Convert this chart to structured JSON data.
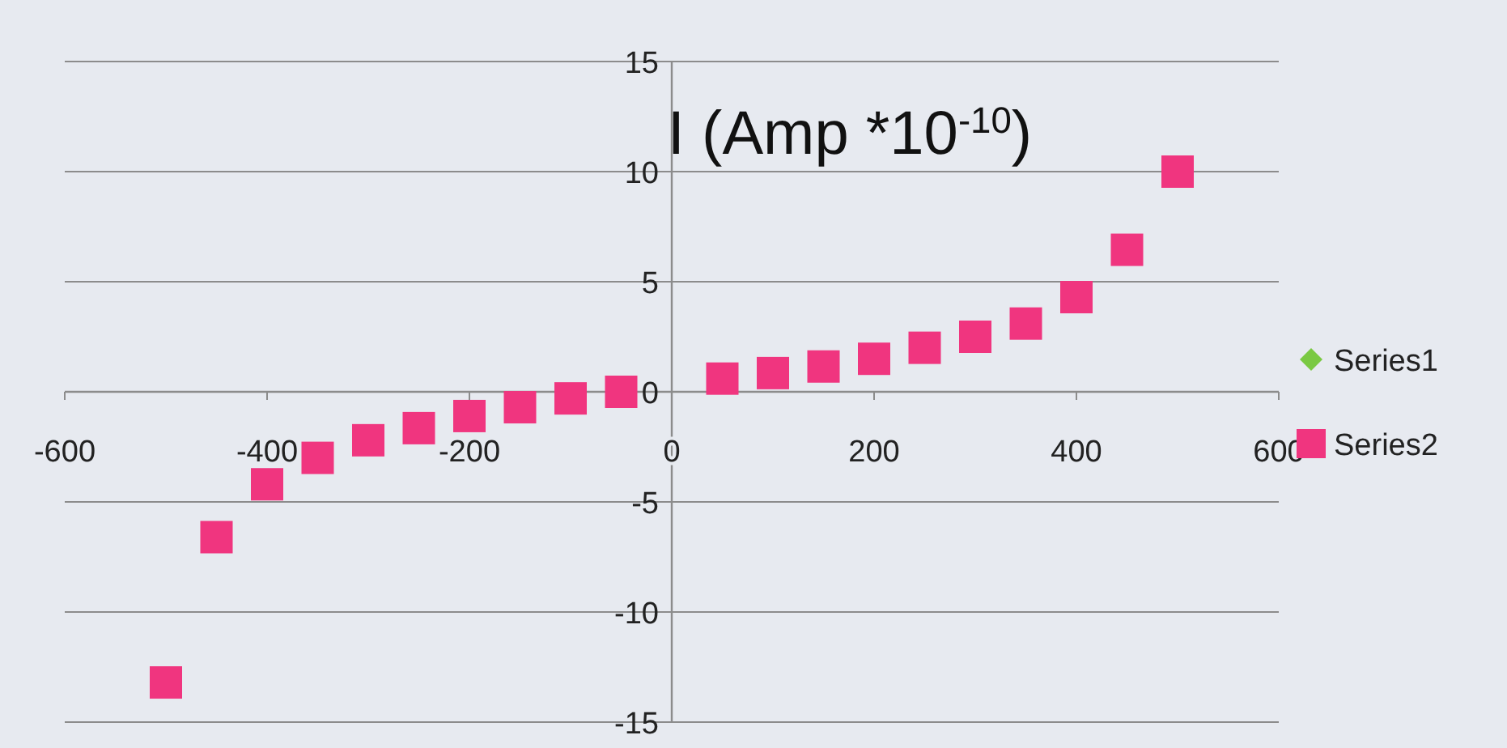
{
  "chart_data": {
    "type": "scatter",
    "title": "I (Amp *10$^{-10}$)",
    "xlim": [
      -600,
      600
    ],
    "xticks": [
      -600,
      -400,
      -200,
      0,
      200,
      400,
      600
    ],
    "ylim": [
      -15,
      15
    ],
    "yticks": [
      -15,
      -10,
      -5,
      0,
      5,
      10,
      15
    ],
    "grid": "y",
    "legend": "right",
    "marker": "square",
    "series": [
      {
        "name": "Series1",
        "color": "#7ac943",
        "marker": "diamond"
      },
      {
        "name": "Series2",
        "color": "#f0357f",
        "x": [
          -500,
          -450,
          -400,
          -350,
          -300,
          -250,
          -200,
          -150,
          -100,
          -50,
          50,
          100,
          150,
          200,
          250,
          300,
          350,
          400,
          450,
          500
        ],
        "values": [
          -13.2,
          -6.6,
          -4.2,
          -3.0,
          -2.2,
          -1.65,
          -1.1,
          -0.7,
          -0.3,
          0,
          0.6,
          0.85,
          1.15,
          1.5,
          2.0,
          2.5,
          3.1,
          4.3,
          6.45,
          10.0
        ]
      }
    ]
  }
}
